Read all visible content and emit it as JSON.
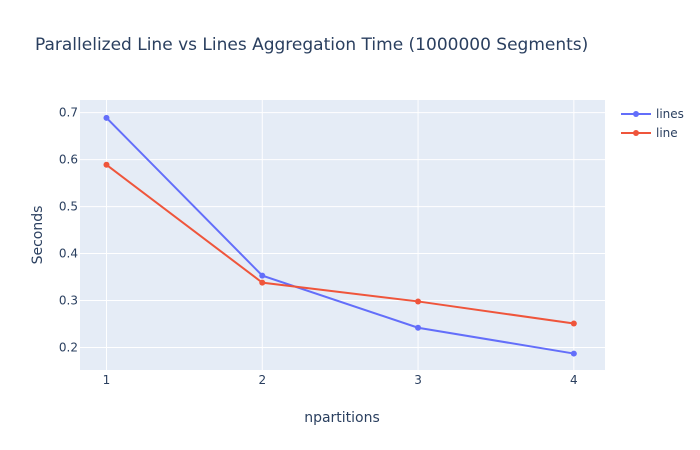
{
  "chart_data": {
    "type": "line",
    "title": "Parallelized Line vs Lines Aggregation Time (1000000 Segments)",
    "xlabel": "npartitions",
    "ylabel": "Seconds",
    "x": [
      1,
      2,
      3,
      4
    ],
    "x_tick_labels": [
      "1",
      "2",
      "3",
      "4"
    ],
    "y_ticks": [
      0.2,
      0.3,
      0.4,
      0.5,
      0.6,
      0.7
    ],
    "y_tick_labels": [
      "0.2",
      "0.3",
      "0.4",
      "0.5",
      "0.6",
      "0.7"
    ],
    "xlim": [
      0.83,
      4.2
    ],
    "ylim": [
      0.152,
      0.727
    ],
    "grid": true,
    "legend_position": "top-right",
    "series": [
      {
        "name": "lines",
        "color": "#636efa",
        "values": [
          0.689,
          0.353,
          0.242,
          0.187
        ]
      },
      {
        "name": "line",
        "color": "#ef553b",
        "values": [
          0.589,
          0.338,
          0.298,
          0.251
        ]
      }
    ],
    "plot_background": "#e5ecf6",
    "grid_color": "#ffffff",
    "text_color": "#2a3f5f"
  }
}
